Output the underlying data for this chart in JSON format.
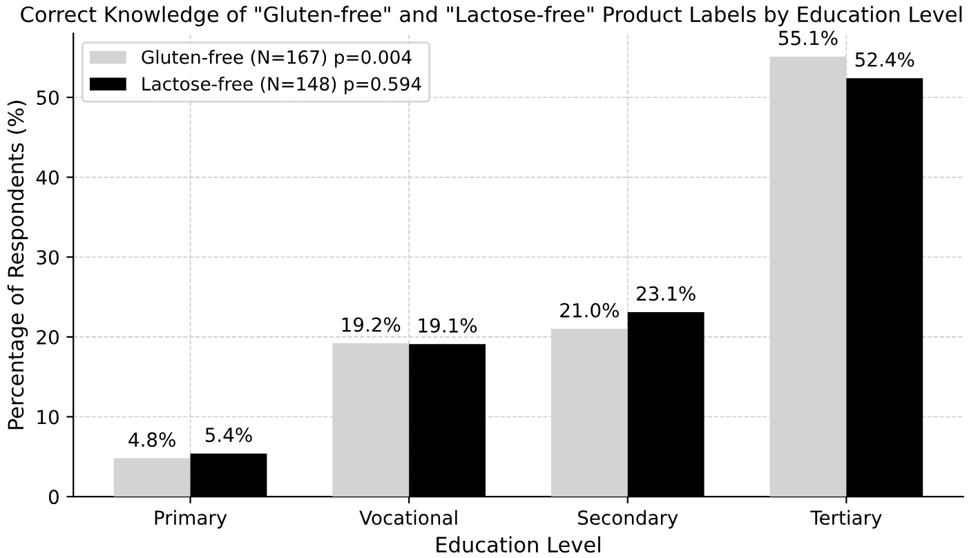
{
  "chart_data": {
    "type": "bar",
    "title": "Correct Knowledge of \"Gluten-free\" and \"Lactose-free\" Product Labels by Education Level",
    "xlabel": "Education Level",
    "ylabel": "Percentage of Respondents (%)",
    "categories": [
      "Primary",
      "Vocational",
      "Secondary",
      "Tertiary"
    ],
    "series": [
      {
        "name": "Gluten-free (N=167) p=0.004",
        "color": "#d3d3d3",
        "values": [
          4.8,
          19.2,
          21.0,
          55.1
        ],
        "value_labels": [
          "4.8%",
          "19.2%",
          "21.0%",
          "55.1%"
        ]
      },
      {
        "name": "Lactose-free (N=148) p=0.594",
        "color": "#000000",
        "values": [
          5.4,
          19.1,
          23.1,
          52.4
        ],
        "value_labels": [
          "5.4%",
          "19.1%",
          "23.1%",
          "52.4%"
        ]
      }
    ],
    "ylim": [
      0,
      58
    ],
    "yticks": [
      0,
      10,
      20,
      30,
      40,
      50
    ],
    "grid": true,
    "legend": "top left"
  }
}
